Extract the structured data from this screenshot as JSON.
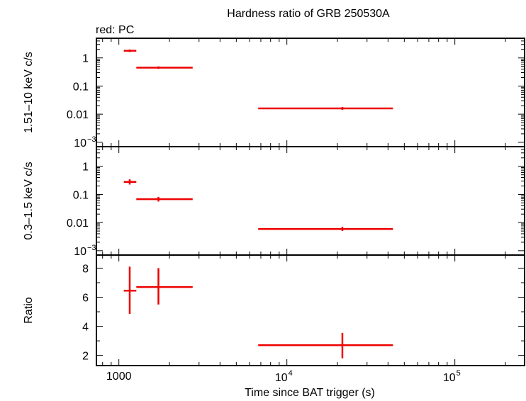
{
  "chart_data": {
    "type": "scatter",
    "title": "Hardness ratio of GRB 250530A",
    "subtitle": "red: PC",
    "xlabel": "Time since BAT trigger (s)",
    "x_scale": "log",
    "xlim": [
      735,
      260000
    ],
    "x_tick_labels": [
      "1000",
      "10",
      "4",
      "10",
      "5"
    ],
    "colors": {
      "series": "#ee0000",
      "axes": "#000000",
      "background": "#ffffff"
    },
    "panels": [
      {
        "ylabel": "1.51–10 keV c/s",
        "y_scale": "log",
        "ylim": [
          0.0007,
          5
        ],
        "y_tick_labels": [
          {
            "mantissa": "1"
          },
          {
            "mantissa": "0.1"
          },
          {
            "mantissa": "0.01"
          },
          {
            "mantissa": "10",
            "exponent": "−3"
          }
        ],
        "points": [
          {
            "x": 1160,
            "x_low": 1070,
            "x_high": 1270,
            "y": 1.8,
            "y_low": 1.62,
            "y_high": 2.0
          },
          {
            "x": 1720,
            "x_low": 1270,
            "x_high": 2750,
            "y": 0.45,
            "y_low": 0.41,
            "y_high": 0.5
          },
          {
            "x": 21400,
            "x_low": 6750,
            "x_high": 42800,
            "y": 0.016,
            "y_low": 0.0142,
            "y_high": 0.018
          }
        ]
      },
      {
        "ylabel": "0.3–1.5 keV c/s",
        "y_scale": "log",
        "ylim": [
          0.0007,
          5
        ],
        "y_tick_labels": [
          {
            "mantissa": "1"
          },
          {
            "mantissa": "0.1"
          },
          {
            "mantissa": "0.01"
          },
          {
            "mantissa": "10",
            "exponent": "−3"
          }
        ],
        "points": [
          {
            "x": 1160,
            "x_low": 1070,
            "x_high": 1270,
            "y": 0.28,
            "y_low": 0.225,
            "y_high": 0.345
          },
          {
            "x": 1720,
            "x_low": 1270,
            "x_high": 2750,
            "y": 0.068,
            "y_low": 0.056,
            "y_high": 0.082
          },
          {
            "x": 21400,
            "x_low": 6750,
            "x_high": 42800,
            "y": 0.0059,
            "y_low": 0.005,
            "y_high": 0.0071
          }
        ]
      },
      {
        "ylabel": "Ratio",
        "y_scale": "linear",
        "ylim": [
          1.3,
          8.9
        ],
        "y_tick_labels": [
          {
            "mantissa": "8"
          },
          {
            "mantissa": "6"
          },
          {
            "mantissa": "4"
          },
          {
            "mantissa": "2"
          }
        ],
        "points": [
          {
            "x": 1160,
            "x_low": 1070,
            "x_high": 1270,
            "y": 6.45,
            "y_low": 4.85,
            "y_high": 8.1
          },
          {
            "x": 1720,
            "x_low": 1270,
            "x_high": 2750,
            "y": 6.7,
            "y_low": 5.5,
            "y_high": 8.0
          },
          {
            "x": 21400,
            "x_low": 6750,
            "x_high": 42800,
            "y": 2.7,
            "y_low": 1.8,
            "y_high": 3.55
          }
        ]
      }
    ]
  }
}
